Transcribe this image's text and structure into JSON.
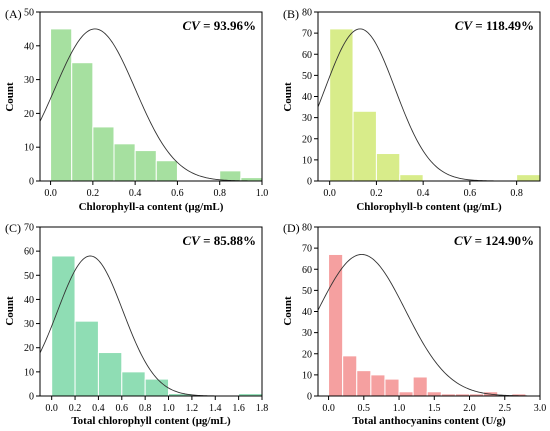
{
  "chart_data": [
    {
      "type": "bar",
      "panel_label": "(A)",
      "cv_label": "CV",
      "cv_value": " = 93.96%",
      "xlabel": "Chlorophyll-a content (μg/mL)",
      "ylabel": "Count",
      "xlim": [
        -0.05,
        1.0
      ],
      "ylim": [
        0,
        50
      ],
      "xticks": [
        0.0,
        0.2,
        0.4,
        0.6,
        0.8,
        1.0
      ],
      "xtick_labels": [
        "0.0",
        "0.2",
        "0.4",
        "0.6",
        "0.8",
        "1.0"
      ],
      "yticks": [
        0,
        10,
        20,
        30,
        40,
        50
      ],
      "bin_edges": [
        0.0,
        0.1,
        0.2,
        0.3,
        0.4,
        0.5,
        0.6,
        0.7,
        0.8,
        0.9,
        1.0
      ],
      "counts": [
        45,
        35,
        16,
        11,
        9,
        6,
        0,
        0,
        3,
        1
      ],
      "fit": {
        "type": "normal",
        "mean": 0.21,
        "sd": 0.19,
        "peak": 45
      },
      "color": "#a6e0a0"
    },
    {
      "type": "bar",
      "panel_label": "(B)",
      "cv_label": "CV",
      "cv_value": " = 118.49%",
      "xlabel": "Chlorophyll-b content (μg/mL)",
      "ylabel": "Count",
      "xlim": [
        -0.05,
        0.9
      ],
      "ylim": [
        0,
        80
      ],
      "xticks": [
        0.0,
        0.2,
        0.4,
        0.6,
        0.8
      ],
      "xtick_labels": [
        "0.0",
        "0.2",
        "0.4",
        "0.6",
        "0.8"
      ],
      "yticks": [
        0,
        10,
        20,
        30,
        40,
        50,
        60,
        70,
        80
      ],
      "bin_edges": [
        0.0,
        0.1,
        0.2,
        0.3,
        0.4,
        0.5,
        0.6,
        0.7,
        0.8,
        0.9
      ],
      "counts": [
        72,
        33,
        13,
        3,
        0,
        0,
        0,
        0,
        3
      ],
      "fit": {
        "type": "normal",
        "mean": 0.13,
        "sd": 0.15,
        "peak": 72
      },
      "color": "#d8ec8a"
    },
    {
      "type": "bar",
      "panel_label": "(C)",
      "cv_label": "CV",
      "cv_value": " = 85.88%",
      "xlabel": "Total chlorophyll content (μg/mL)",
      "ylabel": "Count",
      "xlim": [
        -0.1,
        1.8
      ],
      "ylim": [
        0,
        70
      ],
      "xticks": [
        0.0,
        0.2,
        0.4,
        0.6,
        0.8,
        1.0,
        1.2,
        1.4,
        1.6,
        1.8
      ],
      "xtick_labels": [
        "0.0",
        "0.2",
        "0.4",
        "0.6",
        "0.8",
        "1.0",
        "1.2",
        "1.4",
        "1.6",
        "1.8"
      ],
      "yticks": [
        0,
        10,
        20,
        30,
        40,
        50,
        60,
        70
      ],
      "bin_edges": [
        0.0,
        0.2,
        0.4,
        0.6,
        0.8,
        1.0,
        1.2,
        1.4,
        1.6,
        1.8
      ],
      "counts": [
        58,
        31,
        18,
        10,
        7,
        1,
        0,
        0,
        1
      ],
      "fit": {
        "type": "normal",
        "mean": 0.33,
        "sd": 0.28,
        "peak": 58
      },
      "color": "#8fddb4"
    },
    {
      "type": "bar",
      "panel_label": "(D)",
      "cv_label": "CV",
      "cv_value": " = 124.90%",
      "xlabel": "Total anthocyanins content (U/g)",
      "ylabel": "Count",
      "xlim": [
        -0.15,
        3.0
      ],
      "ylim": [
        0,
        80
      ],
      "xticks": [
        0.0,
        0.5,
        1.0,
        1.5,
        2.0,
        2.5,
        3.0
      ],
      "xtick_labels": [
        "0.0",
        "0.5",
        "1.0",
        "1.5",
        "2.0",
        "2.5",
        "3.0"
      ],
      "yticks": [
        0,
        10,
        20,
        30,
        40,
        50,
        60,
        70,
        80
      ],
      "bin_edges": [
        0.0,
        0.2,
        0.4,
        0.6,
        0.8,
        1.0,
        1.2,
        1.4,
        1.6,
        1.8,
        2.0,
        2.2,
        2.4,
        2.6,
        2.8
      ],
      "counts": [
        67,
        19,
        12,
        10,
        8,
        2,
        9,
        2,
        1,
        1,
        1,
        2,
        0,
        1
      ],
      "fit": {
        "type": "normal",
        "mean": 0.47,
        "sd": 0.62,
        "peak": 67
      },
      "color": "#f5a0a0"
    }
  ]
}
